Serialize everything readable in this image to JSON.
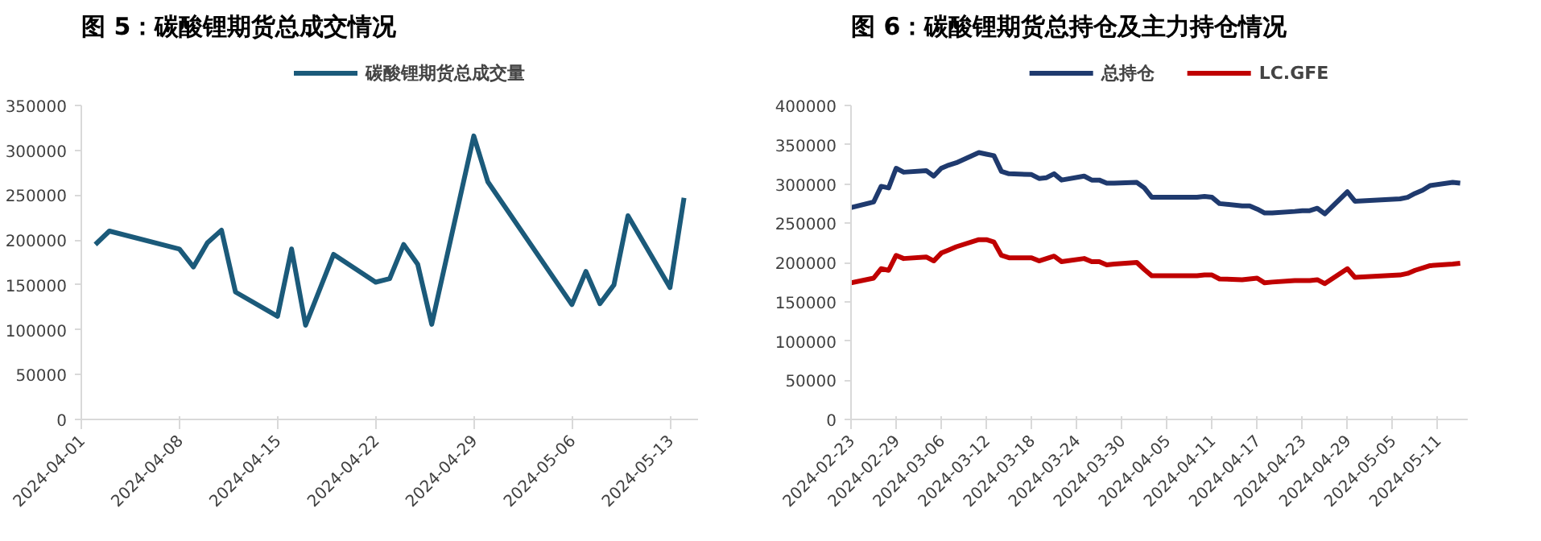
{
  "chart_data": [
    {
      "type": "line",
      "title": "图 5：碳酸锂期货总成交情况",
      "x": [
        "2024-04-02",
        "2024-04-03",
        "2024-04-08",
        "2024-04-09",
        "2024-04-10",
        "2024-04-11",
        "2024-04-12",
        "2024-04-15",
        "2024-04-16",
        "2024-04-17",
        "2024-04-19",
        "2024-04-22",
        "2024-04-23",
        "2024-04-24",
        "2024-04-25",
        "2024-04-26",
        "2024-04-29",
        "2024-04-30",
        "2024-05-06",
        "2024-05-07",
        "2024-05-08",
        "2024-05-09",
        "2024-05-10",
        "2024-05-13",
        "2024-05-14"
      ],
      "series": [
        {
          "name": "碳酸锂期货总成交量",
          "color": "#1b5a7a",
          "values": [
            195000,
            210000,
            190000,
            170000,
            197000,
            211000,
            142000,
            115000,
            190000,
            105000,
            184000,
            153000,
            157000,
            195000,
            173000,
            106000,
            316000,
            265000,
            128000,
            165000,
            129000,
            150000,
            227000,
            147000,
            247000
          ]
        }
      ],
      "xlim": [
        "2024-04-01",
        "2024-05-15"
      ],
      "xticks": [
        "2024-04-01",
        "2024-04-08",
        "2024-04-15",
        "2024-04-22",
        "2024-04-29",
        "2024-05-06",
        "2024-05-13"
      ],
      "ylim": [
        0,
        350000
      ],
      "yticks": [
        0,
        50000,
        100000,
        150000,
        200000,
        250000,
        300000,
        350000
      ],
      "grid": false,
      "legend": "top",
      "marker": "none",
      "line_style": "solid"
    },
    {
      "type": "line",
      "title": "图 6：碳酸锂期货总持仓及主力持仓情况",
      "x": [
        "2024-02-23",
        "2024-02-26",
        "2024-02-27",
        "2024-02-28",
        "2024-02-29",
        "2024-03-01",
        "2024-03-04",
        "2024-03-05",
        "2024-03-06",
        "2024-03-07",
        "2024-03-08",
        "2024-03-11",
        "2024-03-12",
        "2024-03-13",
        "2024-03-14",
        "2024-03-15",
        "2024-03-18",
        "2024-03-19",
        "2024-03-20",
        "2024-03-21",
        "2024-03-22",
        "2024-03-25",
        "2024-03-26",
        "2024-03-27",
        "2024-03-28",
        "2024-03-29",
        "2024-04-01",
        "2024-04-02",
        "2024-04-03",
        "2024-04-08",
        "2024-04-09",
        "2024-04-10",
        "2024-04-11",
        "2024-04-12",
        "2024-04-15",
        "2024-04-16",
        "2024-04-17",
        "2024-04-18",
        "2024-04-19",
        "2024-04-22",
        "2024-04-23",
        "2024-04-24",
        "2024-04-25",
        "2024-04-26",
        "2024-04-29",
        "2024-04-30",
        "2024-05-06",
        "2024-05-07",
        "2024-05-08",
        "2024-05-09",
        "2024-05-10",
        "2024-05-13",
        "2024-05-14"
      ],
      "series": [
        {
          "name": "总持仓",
          "color": "#1f3a6e",
          "values": [
            270000,
            277000,
            297000,
            295000,
            320000,
            315000,
            317000,
            310000,
            320000,
            324000,
            327000,
            340000,
            338000,
            336000,
            316000,
            313000,
            312000,
            307000,
            308000,
            313000,
            305000,
            310000,
            305000,
            305000,
            301000,
            301000,
            302000,
            295000,
            283000,
            283000,
            283000,
            284000,
            283000,
            275000,
            272000,
            272000,
            268000,
            263000,
            263000,
            265000,
            266000,
            266000,
            269000,
            262000,
            290000,
            278000,
            281000,
            283000,
            288000,
            292000,
            298000,
            302000,
            301000
          ]
        },
        {
          "name": "LC.GFE",
          "color": "#c00000",
          "values": [
            174000,
            180000,
            192000,
            190000,
            209000,
            205000,
            207000,
            202000,
            212000,
            216000,
            220000,
            229000,
            229000,
            226000,
            209000,
            206000,
            206000,
            202000,
            205000,
            208000,
            201000,
            205000,
            201000,
            201000,
            197000,
            198000,
            200000,
            191000,
            183000,
            183000,
            183000,
            184000,
            184000,
            179000,
            178000,
            179000,
            180000,
            174000,
            175000,
            177000,
            177000,
            177000,
            178000,
            173000,
            192000,
            181000,
            184000,
            186000,
            190000,
            193000,
            196000,
            198000,
            199000
          ]
        }
      ],
      "xlim": [
        "2024-02-23",
        "2024-05-15"
      ],
      "xticks": [
        "2024-02-23",
        "2024-02-29",
        "2024-03-06",
        "2024-03-12",
        "2024-03-18",
        "2024-03-24",
        "2024-03-30",
        "2024-04-05",
        "2024-04-11",
        "2024-04-17",
        "2024-04-23",
        "2024-04-29",
        "2024-05-05",
        "2024-05-11"
      ],
      "ylim": [
        0,
        400000
      ],
      "yticks": [
        0,
        50000,
        100000,
        150000,
        200000,
        250000,
        300000,
        350000,
        400000
      ],
      "grid": false,
      "legend": "top",
      "marker": "none",
      "line_style": "solid"
    }
  ]
}
